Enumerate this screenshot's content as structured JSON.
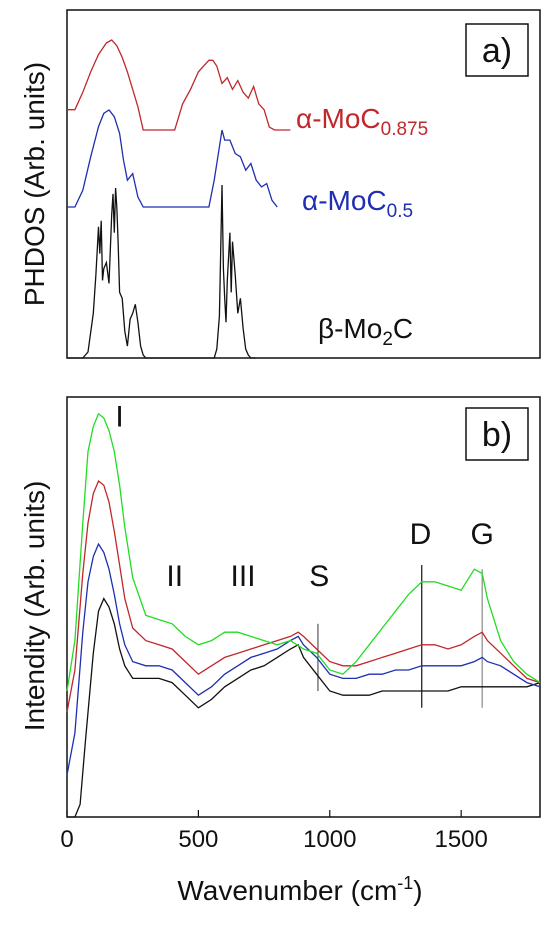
{
  "chart_data": [
    {
      "type": "line",
      "panel_label": "a)",
      "ylabel": "PHDOS (Arb. units)",
      "xlim": [
        0,
        1800
      ],
      "ylim": [
        0,
        10
      ],
      "series": [
        {
          "name": "α-MoC0.875",
          "label_main": "α-MoC",
          "label_sub": "0.875",
          "color": "#c0282c",
          "x": [
            0,
            30,
            60,
            90,
            120,
            150,
            170,
            190,
            210,
            230,
            250,
            270,
            290,
            310,
            330,
            350,
            370,
            390,
            410,
            440,
            470,
            500,
            520,
            540,
            555,
            570,
            590,
            610,
            630,
            650,
            670,
            690,
            710,
            730,
            750,
            770,
            790,
            810,
            850
          ],
          "y": [
            7.3,
            7.3,
            7.9,
            8.6,
            9.2,
            9.6,
            9.7,
            9.5,
            9.1,
            8.6,
            8.0,
            7.4,
            6.6,
            6.6,
            6.6,
            6.6,
            6.6,
            6.6,
            6.6,
            7.5,
            8.0,
            8.6,
            8.8,
            9.0,
            9.0,
            8.8,
            8.2,
            8.4,
            8.0,
            8.3,
            7.9,
            7.7,
            8.1,
            7.5,
            7.3,
            6.7,
            6.6,
            6.6,
            6.6
          ]
        },
        {
          "name": "α-MoC0.5",
          "label_main": "α-MoC",
          "label_sub": "0.5",
          "color": "#1f2fb0",
          "x": [
            0,
            30,
            60,
            90,
            120,
            140,
            160,
            180,
            200,
            215,
            230,
            250,
            270,
            290,
            310,
            350,
            400,
            450,
            500,
            540,
            560,
            580,
            590,
            600,
            620,
            640,
            660,
            680,
            700,
            720,
            740,
            760,
            780,
            800
          ],
          "y": [
            4.2,
            4.2,
            4.7,
            5.7,
            6.6,
            7.0,
            7.1,
            6.9,
            6.4,
            5.6,
            5.0,
            5.2,
            4.5,
            4.2,
            4.2,
            4.2,
            4.2,
            4.2,
            4.2,
            4.2,
            5.0,
            6.0,
            6.5,
            6.2,
            6.2,
            5.8,
            5.7,
            5.3,
            5.5,
            5.0,
            4.8,
            4.9,
            4.4,
            4.2
          ]
        },
        {
          "name": "β-Mo2C",
          "label_main": "β-Mo",
          "label_sub": "2",
          "label_tail": "C",
          "color": "#111111",
          "x": [
            0,
            60,
            80,
            100,
            110,
            120,
            125,
            130,
            135,
            140,
            150,
            160,
            170,
            175,
            180,
            185,
            190,
            195,
            200,
            210,
            220,
            230,
            240,
            250,
            260,
            270,
            280,
            290,
            300,
            310,
            560,
            570,
            580,
            585,
            590,
            595,
            600,
            605,
            610,
            615,
            620,
            625,
            630,
            640,
            650,
            660,
            670,
            680,
            690,
            700,
            720
          ],
          "y": [
            0,
            0,
            0.2,
            1.5,
            2.8,
            4.4,
            3.5,
            4.6,
            2.6,
            3.0,
            3.2,
            2.5,
            4.8,
            5.5,
            4.2,
            5.7,
            5.0,
            3.8,
            2.2,
            2.0,
            0.9,
            0.4,
            1.3,
            1.5,
            1.8,
            1.2,
            0.4,
            0.1,
            0,
            0,
            0,
            0.3,
            1.4,
            3.6,
            5.8,
            3.0,
            2.0,
            1.2,
            2.6,
            3.4,
            4.2,
            2.2,
            3.9,
            2.8,
            1.5,
            2.0,
            1.0,
            0.3,
            0.1,
            0,
            0
          ]
        }
      ]
    },
    {
      "type": "line",
      "panel_label": "b)",
      "xlabel": "Wavenumber (cm",
      "xlabel_sup": "-1",
      "xlabel_tail": ")",
      "ylabel": "Intendity (Arb. units)",
      "xlim": [
        0,
        1800
      ],
      "ylim": [
        0,
        10
      ],
      "xticks": [
        0,
        500,
        1000,
        1500
      ],
      "peak_labels": [
        {
          "text": "I",
          "x": 200,
          "y": 9.3
        },
        {
          "text": "II",
          "x": 410,
          "y": 5.5
        },
        {
          "text": "III",
          "x": 670,
          "y": 5.5
        },
        {
          "text": "S",
          "x": 960,
          "y": 5.5
        },
        {
          "text": "D",
          "x": 1345,
          "y": 6.5
        },
        {
          "text": "G",
          "x": 1580,
          "y": 6.5
        }
      ],
      "markers": [
        {
          "x": 955,
          "y_from": 3.0,
          "y_to": 4.6,
          "color": "#555555"
        },
        {
          "x": 1350,
          "y_from": 2.6,
          "y_to": 6.0,
          "color": "#111111"
        },
        {
          "x": 1580,
          "y_from": 2.6,
          "y_to": 5.9,
          "color": "#888888"
        }
      ],
      "series": [
        {
          "name": "green",
          "color": "#22dd22",
          "x": [
            0,
            30,
            60,
            80,
            100,
            120,
            140,
            160,
            180,
            200,
            220,
            250,
            300,
            350,
            400,
            450,
            500,
            550,
            600,
            650,
            700,
            750,
            800,
            850,
            900,
            950,
            1000,
            1050,
            1100,
            1150,
            1200,
            1250,
            1300,
            1350,
            1400,
            1450,
            1500,
            1550,
            1580,
            1600,
            1650,
            1700,
            1750,
            1800
          ],
          "y": [
            3.0,
            4.2,
            7.0,
            8.7,
            9.3,
            9.6,
            9.5,
            9.2,
            8.7,
            7.9,
            6.9,
            5.7,
            4.8,
            4.7,
            4.6,
            4.3,
            4.1,
            4.2,
            4.4,
            4.4,
            4.3,
            4.2,
            4.1,
            4.2,
            4.0,
            3.9,
            3.5,
            3.4,
            3.7,
            4.1,
            4.5,
            4.9,
            5.3,
            5.6,
            5.6,
            5.5,
            5.4,
            5.9,
            5.8,
            5.2,
            4.2,
            3.7,
            3.4,
            3.2
          ]
        },
        {
          "name": "red",
          "color": "#c0282c",
          "x": [
            0,
            30,
            60,
            80,
            100,
            120,
            140,
            160,
            180,
            200,
            220,
            250,
            300,
            350,
            400,
            450,
            500,
            550,
            600,
            650,
            700,
            750,
            800,
            850,
            880,
            900,
            950,
            1000,
            1050,
            1100,
            1150,
            1200,
            1250,
            1300,
            1350,
            1400,
            1450,
            1500,
            1550,
            1580,
            1600,
            1650,
            1700,
            1750,
            1800
          ],
          "y": [
            2.5,
            3.5,
            5.8,
            7.0,
            7.7,
            8.0,
            7.9,
            7.5,
            6.8,
            6.0,
            5.2,
            4.5,
            4.2,
            4.1,
            4.0,
            3.7,
            3.4,
            3.6,
            3.8,
            3.9,
            4.0,
            4.1,
            4.2,
            4.3,
            4.4,
            4.3,
            4.0,
            3.7,
            3.6,
            3.6,
            3.7,
            3.8,
            3.9,
            4.0,
            4.1,
            4.1,
            4.0,
            4.1,
            4.3,
            4.4,
            4.2,
            3.9,
            3.6,
            3.3,
            3.2
          ]
        },
        {
          "name": "blue",
          "color": "#1f2fb0",
          "x": [
            0,
            30,
            60,
            80,
            100,
            120,
            140,
            160,
            180,
            200,
            220,
            250,
            300,
            350,
            400,
            450,
            500,
            550,
            600,
            650,
            700,
            750,
            800,
            850,
            880,
            900,
            950,
            1000,
            1050,
            1100,
            1150,
            1200,
            1250,
            1300,
            1350,
            1400,
            1450,
            1500,
            1550,
            1580,
            1600,
            1650,
            1700,
            1750,
            1800
          ],
          "y": [
            1.0,
            2.0,
            4.4,
            5.6,
            6.2,
            6.5,
            6.3,
            5.9,
            5.3,
            4.6,
            4.1,
            3.7,
            3.6,
            3.6,
            3.5,
            3.2,
            2.9,
            3.1,
            3.4,
            3.6,
            3.8,
            3.9,
            4.0,
            4.2,
            4.3,
            4.1,
            3.8,
            3.4,
            3.3,
            3.3,
            3.4,
            3.4,
            3.5,
            3.5,
            3.6,
            3.6,
            3.6,
            3.6,
            3.7,
            3.8,
            3.7,
            3.6,
            3.4,
            3.2,
            3.1
          ]
        },
        {
          "name": "black",
          "color": "#111111",
          "x": [
            0,
            30,
            50,
            70,
            100,
            120,
            140,
            160,
            180,
            200,
            220,
            250,
            300,
            350,
            400,
            450,
            500,
            550,
            600,
            650,
            700,
            750,
            800,
            850,
            880,
            900,
            950,
            1000,
            1050,
            1100,
            1150,
            1200,
            1250,
            1300,
            1350,
            1400,
            1450,
            1500,
            1550,
            1600,
            1650,
            1700,
            1750,
            1800
          ],
          "y": [
            0.0,
            0.0,
            0.3,
            1.8,
            3.9,
            4.9,
            5.2,
            5.0,
            4.6,
            4.0,
            3.6,
            3.3,
            3.3,
            3.3,
            3.2,
            2.9,
            2.6,
            2.8,
            3.1,
            3.3,
            3.5,
            3.6,
            3.8,
            4.0,
            4.1,
            3.8,
            3.4,
            3.0,
            2.9,
            2.9,
            2.9,
            3.0,
            3.0,
            3.0,
            3.0,
            3.0,
            3.0,
            3.1,
            3.1,
            3.1,
            3.1,
            3.1,
            3.1,
            3.2
          ]
        }
      ]
    }
  ]
}
